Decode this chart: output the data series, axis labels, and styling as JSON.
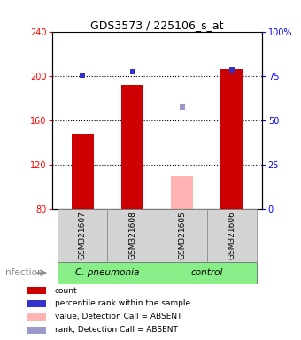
{
  "title": "GDS3573 / 225106_s_at",
  "samples": [
    "GSM321607",
    "GSM321608",
    "GSM321605",
    "GSM321606"
  ],
  "bar_values": [
    148,
    192,
    110,
    207
  ],
  "bar_colors": [
    "#cc0000",
    "#cc0000",
    "#ffb3b3",
    "#cc0000"
  ],
  "percentile_values": [
    201,
    204,
    172,
    206
  ],
  "percentile_colors": [
    "#3333cc",
    "#3333cc",
    "#9999cc",
    "#3333cc"
  ],
  "ylim_left": [
    80,
    240
  ],
  "ylim_right": [
    0,
    100
  ],
  "yticks_left": [
    80,
    120,
    160,
    200,
    240
  ],
  "yticks_right": [
    0,
    25,
    50,
    75,
    100
  ],
  "groups": [
    {
      "label": "C. pneumonia",
      "indices": [
        0,
        1
      ],
      "color": "#88ee88"
    },
    {
      "label": "control",
      "indices": [
        2,
        3
      ],
      "color": "#88ee88"
    }
  ],
  "group_row_label": "infection",
  "bar_width": 0.45,
  "dotted_line_values": [
    120,
    160,
    200
  ],
  "legend_items": [
    {
      "label": "count",
      "color": "#cc0000"
    },
    {
      "label": "percentile rank within the sample",
      "color": "#3333cc"
    },
    {
      "label": "value, Detection Call = ABSENT",
      "color": "#ffb3b3"
    },
    {
      "label": "rank, Detection Call = ABSENT",
      "color": "#9999cc"
    }
  ],
  "bg_color": "#ffffff",
  "label_box_color": "#d3d3d3",
  "title_fontsize": 9,
  "tick_fontsize": 7,
  "sample_fontsize": 6.5,
  "group_fontsize": 7.5,
  "legend_fontsize": 6.5
}
